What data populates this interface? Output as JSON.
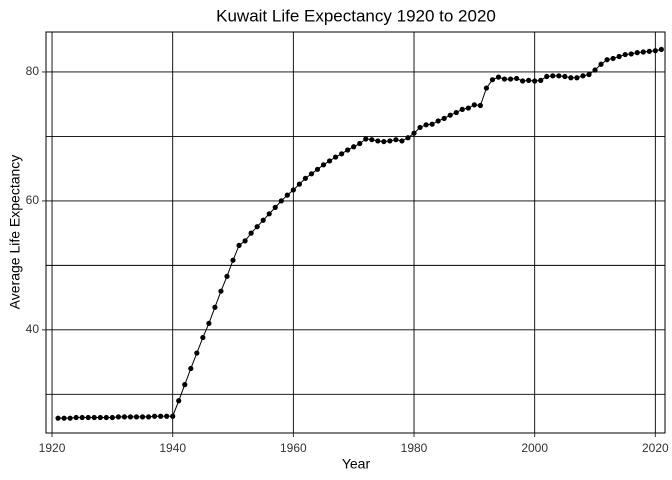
{
  "chart_data": {
    "type": "line",
    "title": "Kuwait Life Expectancy 1920 to 2020",
    "x_label": "Year",
    "y_label": "Average Life Expectancy",
    "x": [
      1921,
      1922,
      1923,
      1924,
      1925,
      1926,
      1927,
      1928,
      1929,
      1930,
      1931,
      1932,
      1933,
      1934,
      1935,
      1936,
      1937,
      1938,
      1939,
      1940,
      1941,
      1942,
      1943,
      1944,
      1945,
      1946,
      1947,
      1948,
      1949,
      1950,
      1951,
      1952,
      1953,
      1954,
      1955,
      1956,
      1957,
      1958,
      1959,
      1960,
      1961,
      1962,
      1963,
      1964,
      1965,
      1966,
      1967,
      1968,
      1969,
      1970,
      1971,
      1972,
      1973,
      1974,
      1975,
      1976,
      1977,
      1978,
      1979,
      1980,
      1981,
      1982,
      1983,
      1984,
      1985,
      1986,
      1987,
      1988,
      1989,
      1990,
      1991,
      1992,
      1993,
      1994,
      1995,
      1996,
      1997,
      1998,
      1999,
      2000,
      2001,
      2002,
      2003,
      2004,
      2005,
      2006,
      2007,
      2008,
      2009,
      2010,
      2011,
      2012,
      2013,
      2014,
      2015,
      2016,
      2017,
      2018,
      2019,
      2020,
      2021
    ],
    "series": [
      {
        "name": "Average Life Expectancy",
        "color": "#000000",
        "values": [
          26.3,
          26.3,
          26.3,
          26.4,
          26.4,
          26.4,
          26.4,
          26.4,
          26.4,
          26.4,
          26.5,
          26.5,
          26.5,
          26.5,
          26.5,
          26.5,
          26.6,
          26.6,
          26.6,
          26.6,
          29.0,
          31.5,
          34.0,
          36.4,
          38.8,
          41.0,
          43.5,
          46.0,
          48.3,
          50.8,
          53.1,
          53.8,
          55.0,
          56.0,
          57.0,
          58.0,
          59.0,
          60.0,
          60.9,
          61.7,
          62.6,
          63.5,
          64.2,
          64.9,
          65.6,
          66.2,
          66.8,
          67.3,
          67.9,
          68.4,
          68.9,
          69.6,
          69.5,
          69.3,
          69.2,
          69.3,
          69.5,
          69.3,
          69.8,
          70.5,
          71.4,
          71.8,
          71.9,
          72.4,
          72.8,
          73.3,
          73.7,
          74.2,
          74.4,
          74.9,
          74.8,
          77.5,
          78.8,
          79.2,
          78.9,
          78.9,
          79.0,
          78.6,
          78.7,
          78.6,
          78.7,
          79.3,
          79.4,
          79.4,
          79.3,
          79.1,
          79.1,
          79.4,
          79.6,
          80.3,
          81.2,
          81.9,
          82.1,
          82.4,
          82.7,
          82.8,
          83.0,
          83.1,
          83.2,
          83.3,
          83.5
        ]
      }
    ],
    "xlim": [
      1919,
      2021.6
    ],
    "ylim": [
      24,
      86.2
    ],
    "xticks": [
      1920,
      1940,
      1960,
      1980,
      2000,
      2020
    ],
    "yticks": [
      40,
      60,
      80
    ],
    "minor_yticks": [
      30,
      50,
      70
    ],
    "grid": true
  }
}
